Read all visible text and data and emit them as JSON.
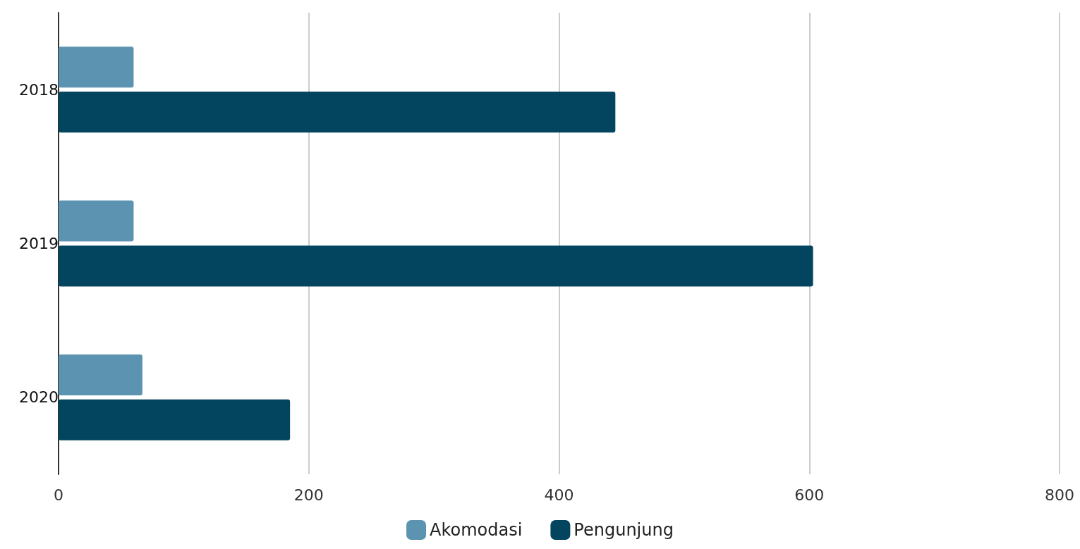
{
  "chart_data": {
    "type": "bar",
    "orientation": "horizontal",
    "categories": [
      "2018",
      "2019",
      "2020"
    ],
    "series": [
      {
        "name": "Akomodasi",
        "color": "#5b93b0",
        "values": [
          60,
          60,
          67
        ]
      },
      {
        "name": "Pengunjung",
        "color": "#03445f",
        "values": [
          445,
          603,
          185
        ]
      }
    ],
    "xlim": [
      0,
      800
    ],
    "xticks": [
      0,
      200,
      400,
      600,
      800
    ],
    "grid": "x",
    "legend": "bottom"
  }
}
